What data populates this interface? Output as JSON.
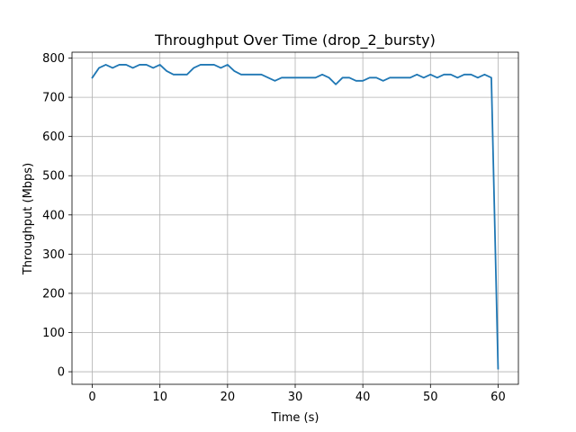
{
  "chart_data": {
    "type": "line",
    "title": "Throughput Over Time (drop_2_bursty)",
    "xlabel": "Time (s)",
    "ylabel": "Throughput (Mbps)",
    "xlim": [
      -3,
      63
    ],
    "ylim": [
      -32,
      815
    ],
    "xticks": [
      0,
      10,
      20,
      30,
      40,
      50,
      60
    ],
    "yticks": [
      0,
      100,
      200,
      300,
      400,
      500,
      600,
      700,
      800
    ],
    "grid": true,
    "series": [
      {
        "color": "#1f77b4",
        "x": [
          0,
          1,
          2,
          3,
          4,
          5,
          6,
          7,
          8,
          9,
          10,
          11,
          12,
          13,
          14,
          15,
          16,
          17,
          18,
          19,
          20,
          21,
          22,
          23,
          24,
          25,
          26,
          27,
          28,
          29,
          30,
          31,
          32,
          33,
          34,
          35,
          36,
          37,
          38,
          39,
          40,
          41,
          42,
          43,
          44,
          45,
          46,
          47,
          48,
          49,
          50,
          51,
          52,
          53,
          54,
          55,
          56,
          57,
          58,
          59,
          60
        ],
        "y": [
          750,
          775,
          783,
          775,
          783,
          783,
          775,
          783,
          783,
          775,
          783,
          767,
          758,
          758,
          758,
          775,
          783,
          783,
          783,
          775,
          783,
          767,
          758,
          758,
          758,
          758,
          750,
          742,
          750,
          750,
          750,
          750,
          750,
          750,
          758,
          750,
          733,
          750,
          750,
          742,
          742,
          750,
          750,
          742,
          750,
          750,
          750,
          750,
          758,
          750,
          758,
          750,
          758,
          758,
          750,
          758,
          758,
          750,
          758,
          750,
          8
        ]
      }
    ]
  }
}
